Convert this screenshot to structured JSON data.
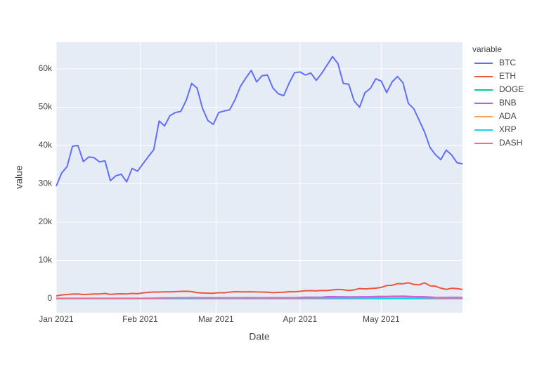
{
  "chart_data": {
    "type": "line",
    "x_label": "Date",
    "y_label": "value",
    "legend_title": "variable",
    "grid": true,
    "legend": "right",
    "x": [
      "2021-01-01",
      "2021-01-03",
      "2021-01-05",
      "2021-01-07",
      "2021-01-09",
      "2021-01-11",
      "2021-01-13",
      "2021-01-15",
      "2021-01-17",
      "2021-01-19",
      "2021-01-21",
      "2021-01-23",
      "2021-01-25",
      "2021-01-27",
      "2021-01-29",
      "2021-01-31",
      "2021-02-02",
      "2021-02-04",
      "2021-02-06",
      "2021-02-08",
      "2021-02-10",
      "2021-02-12",
      "2021-02-14",
      "2021-02-16",
      "2021-02-18",
      "2021-02-20",
      "2021-02-22",
      "2021-02-24",
      "2021-02-26",
      "2021-02-28",
      "2021-03-02",
      "2021-03-04",
      "2021-03-06",
      "2021-03-08",
      "2021-03-10",
      "2021-03-12",
      "2021-03-14",
      "2021-03-16",
      "2021-03-18",
      "2021-03-20",
      "2021-03-22",
      "2021-03-24",
      "2021-03-26",
      "2021-03-28",
      "2021-03-30",
      "2021-04-01",
      "2021-04-03",
      "2021-04-05",
      "2021-04-07",
      "2021-04-09",
      "2021-04-11",
      "2021-04-13",
      "2021-04-15",
      "2021-04-17",
      "2021-04-19",
      "2021-04-21",
      "2021-04-23",
      "2021-04-25",
      "2021-04-27",
      "2021-04-29",
      "2021-05-01",
      "2021-05-03",
      "2021-05-05",
      "2021-05-07",
      "2021-05-09",
      "2021-05-11",
      "2021-05-13",
      "2021-05-15",
      "2021-05-17",
      "2021-05-19",
      "2021-05-21",
      "2021-05-23",
      "2021-05-25",
      "2021-05-27",
      "2021-05-29",
      "2021-05-31"
    ],
    "xlim": [
      "2021-01-01",
      "2021-05-31"
    ],
    "xticks": [
      {
        "value": "2021-01-01",
        "label": "Jan 2021"
      },
      {
        "value": "2021-02-01",
        "label": "Feb 2021"
      },
      {
        "value": "2021-03-01",
        "label": "Mar 2021"
      },
      {
        "value": "2021-04-01",
        "label": "Apr 2021"
      },
      {
        "value": "2021-05-01",
        "label": "May 2021"
      }
    ],
    "ylim": [
      -3670,
      66970
    ],
    "yticks": [
      0,
      {
        "value": 10000,
        "label": "10k"
      },
      {
        "value": 20000,
        "label": "20k"
      },
      {
        "value": 30000,
        "label": "30k"
      },
      {
        "value": 40000,
        "label": "40k"
      },
      {
        "value": 50000,
        "label": "50k"
      },
      {
        "value": 60000,
        "label": "60k"
      }
    ],
    "series": [
      {
        "name": "BTC",
        "color": "#636efa",
        "values": [
          29400,
          32800,
          34500,
          39800,
          40000,
          35800,
          37000,
          36800,
          35700,
          36000,
          30800,
          32100,
          32500,
          30500,
          34000,
          33300,
          35200,
          37100,
          38900,
          46400,
          45100,
          47800,
          48600,
          48900,
          51800,
          56200,
          55000,
          49700,
          46500,
          45500,
          48600,
          49000,
          49300,
          51900,
          55400,
          57600,
          59600,
          56600,
          58200,
          58400,
          55000,
          53500,
          53000,
          56300,
          59000,
          59200,
          58400,
          58900,
          57000,
          58800,
          61000,
          63200,
          61400,
          56200,
          56000,
          51600,
          50000,
          53800,
          54900,
          57400,
          56800,
          53800,
          56600,
          58000,
          56400,
          51000,
          49600,
          46600,
          43500,
          39500,
          37600,
          36300,
          38800,
          37500,
          35500,
          35200
        ]
      },
      {
        "name": "ETH",
        "color": "#EF553B",
        "values": [
          730,
          980,
          1100,
          1220,
          1230,
          1090,
          1150,
          1230,
          1250,
          1380,
          1120,
          1230,
          1290,
          1250,
          1380,
          1310,
          1510,
          1660,
          1740,
          1750,
          1800,
          1780,
          1840,
          1920,
          1940,
          1860,
          1580,
          1480,
          1440,
          1420,
          1570,
          1540,
          1730,
          1830,
          1800,
          1790,
          1810,
          1760,
          1740,
          1700,
          1590,
          1640,
          1700,
          1840,
          1820,
          1920,
          2080,
          2100,
          2030,
          2150,
          2140,
          2300,
          2430,
          2330,
          2140,
          2320,
          2660,
          2540,
          2650,
          2750,
          2950,
          3430,
          3500,
          3930,
          3890,
          4170,
          3730,
          3630,
          4150,
          3380,
          3270,
          2750,
          2430,
          2740,
          2630,
          2400
        ]
      },
      {
        "name": "DOGE",
        "color": "#00cc96",
        "values": [
          0.005,
          0.006,
          0.007,
          0.01,
          0.01,
          0.009,
          0.009,
          0.009,
          0.009,
          0.01,
          0.009,
          0.009,
          0.009,
          0.01,
          0.03,
          0.037,
          0.035,
          0.05,
          0.06,
          0.08,
          0.07,
          0.07,
          0.06,
          0.06,
          0.06,
          0.06,
          0.05,
          0.05,
          0.05,
          0.05,
          0.05,
          0.05,
          0.05,
          0.05,
          0.05,
          0.05,
          0.06,
          0.06,
          0.06,
          0.06,
          0.06,
          0.06,
          0.06,
          0.06,
          0.06,
          0.06,
          0.06,
          0.06,
          0.07,
          0.07,
          0.07,
          0.1,
          0.37,
          0.3,
          0.3,
          0.25,
          0.25,
          0.27,
          0.27,
          0.3,
          0.38,
          0.45,
          0.6,
          0.6,
          0.57,
          0.48,
          0.5,
          0.5,
          0.5,
          0.38,
          0.35,
          0.3,
          0.35,
          0.35,
          0.3,
          0.3
        ]
      },
      {
        "name": "BNB",
        "color": "#ab63fa",
        "values": [
          38,
          40,
          42,
          42,
          44,
          42,
          43,
          42,
          43,
          44,
          40,
          40,
          40,
          40,
          42,
          44,
          50,
          53,
          60,
          70,
          120,
          130,
          130,
          140,
          200,
          270,
          230,
          230,
          220,
          210,
          230,
          230,
          230,
          230,
          230,
          265,
          270,
          260,
          260,
          270,
          260,
          250,
          260,
          270,
          280,
          310,
          380,
          400,
          400,
          400,
          540,
          580,
          520,
          530,
          480,
          500,
          520,
          530,
          560,
          600,
          610,
          600,
          650,
          650,
          660,
          620,
          560,
          550,
          530,
          440,
          350,
          320,
          330,
          360,
          340,
          330
        ]
      },
      {
        "name": "ADA",
        "color": "#FFA15A",
        "values": [
          0.18,
          0.18,
          0.24,
          0.3,
          0.3,
          0.28,
          0.3,
          0.33,
          0.35,
          0.38,
          0.32,
          0.35,
          0.35,
          0.33,
          0.35,
          0.35,
          0.4,
          0.45,
          0.55,
          0.6,
          0.7,
          0.75,
          0.8,
          0.9,
          0.9,
          1.0,
          1.0,
          1.0,
          1.1,
          1.3,
          1.1,
          1.1,
          1.1,
          1.1,
          1.1,
          1.1,
          1.1,
          1.1,
          1.3,
          1.3,
          1.1,
          1.1,
          1.2,
          1.2,
          1.2,
          1.2,
          1.2,
          1.2,
          1.3,
          1.3,
          1.4,
          1.4,
          1.4,
          1.3,
          1.2,
          1.2,
          1.1,
          1.1,
          1.2,
          1.4,
          1.4,
          1.4,
          1.7,
          1.7,
          1.8,
          1.9,
          2.1,
          2.3,
          2.1,
          2.0,
          1.6,
          1.4,
          1.5,
          1.7,
          1.6,
          1.7
        ]
      },
      {
        "name": "XRP",
        "color": "#19d3f3",
        "values": [
          0.24,
          0.22,
          0.24,
          0.3,
          0.3,
          0.28,
          0.3,
          0.29,
          0.28,
          0.28,
          0.27,
          0.27,
          0.27,
          0.27,
          0.45,
          0.5,
          0.4,
          0.45,
          0.45,
          0.5,
          0.5,
          0.55,
          0.55,
          0.55,
          0.5,
          0.5,
          0.45,
          0.45,
          0.45,
          0.43,
          0.43,
          0.43,
          0.45,
          0.45,
          0.45,
          0.45,
          0.45,
          0.5,
          0.5,
          0.55,
          0.55,
          0.55,
          0.55,
          0.57,
          0.57,
          0.57,
          0.6,
          0.9,
          1.0,
          1.0,
          1.4,
          1.6,
          1.6,
          1.4,
          1.2,
          1.3,
          1.2,
          1.1,
          1.2,
          1.5,
          1.6,
          1.5,
          1.5,
          1.5,
          1.5,
          1.5,
          1.5,
          1.4,
          1.4,
          1.2,
          1.1,
          0.9,
          0.9,
          1.0,
          0.9,
          0.9
        ]
      },
      {
        "name": "DASH",
        "color": "#FF6692",
        "values": [
          100,
          105,
          110,
          120,
          120,
          115,
          118,
          118,
          120,
          125,
          110,
          115,
          120,
          115,
          115,
          115,
          125,
          135,
          140,
          190,
          230,
          240,
          240,
          250,
          260,
          280,
          250,
          240,
          230,
          230,
          220,
          230,
          230,
          230,
          230,
          220,
          230,
          220,
          220,
          220,
          210,
          200,
          200,
          210,
          220,
          230,
          240,
          250,
          250,
          250,
          280,
          290,
          300,
          310,
          300,
          300,
          320,
          330,
          340,
          360,
          380,
          400,
          430,
          420,
          410,
          400,
          380,
          340,
          320,
          260,
          240,
          200,
          210,
          230,
          220,
          210
        ]
      }
    ]
  }
}
